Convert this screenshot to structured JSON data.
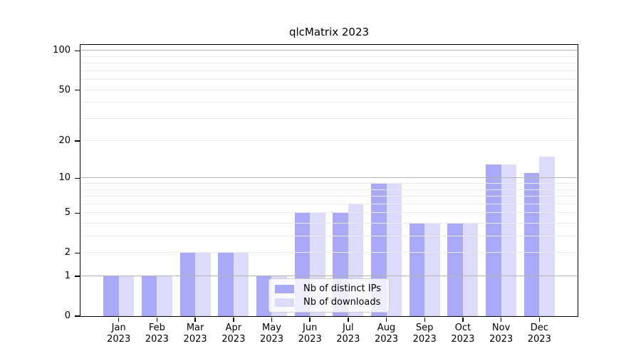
{
  "chart_data": {
    "type": "bar",
    "title": "qlcMatrix 2023",
    "categories": [
      "Jan 2023",
      "Feb 2023",
      "Mar 2023",
      "Apr 2023",
      "May 2023",
      "Jun 2023",
      "Jul 2023",
      "Aug 2023",
      "Sep 2023",
      "Oct 2023",
      "Nov 2023",
      "Dec 2023"
    ],
    "series": [
      {
        "name": "Nb of distinct IPs",
        "color": "#a9a9f8",
        "values": [
          1,
          1,
          2,
          2,
          1,
          5,
          5,
          9,
          4,
          4,
          13,
          11
        ]
      },
      {
        "name": "Nb of downloads",
        "color": "#dcdcfa",
        "values": [
          1,
          1,
          2,
          2,
          1,
          5,
          6,
          9,
          4,
          4,
          13,
          15
        ]
      }
    ],
    "xlabel": "",
    "ylabel": "",
    "yscale": "log1p",
    "ylim": [
      0,
      111
    ],
    "yticks": [
      0,
      1,
      2,
      5,
      10,
      20,
      50,
      100
    ],
    "ytick_labels": [
      "0",
      "1",
      "2",
      "5",
      "10",
      "20",
      "50",
      "100"
    ],
    "major_gridlines": [
      1,
      10,
      100
    ],
    "minor_gridlines": [
      2,
      3,
      4,
      5,
      6,
      7,
      8,
      9,
      20,
      30,
      40,
      50,
      60,
      70,
      80,
      90
    ],
    "grid": "horizontal gridlines drawn above bars",
    "legend_position": "lower center inside plot"
  },
  "colors": {
    "bar_ips": "#a9a9f8",
    "bar_downloads": "#dcdcfa",
    "grid_major": "#b3b3b3",
    "grid_minor": "#eaeaea",
    "axis": "#000000",
    "legend_border": "#cccccc",
    "legend_bg": "rgba(255,255,255,0.8)"
  }
}
